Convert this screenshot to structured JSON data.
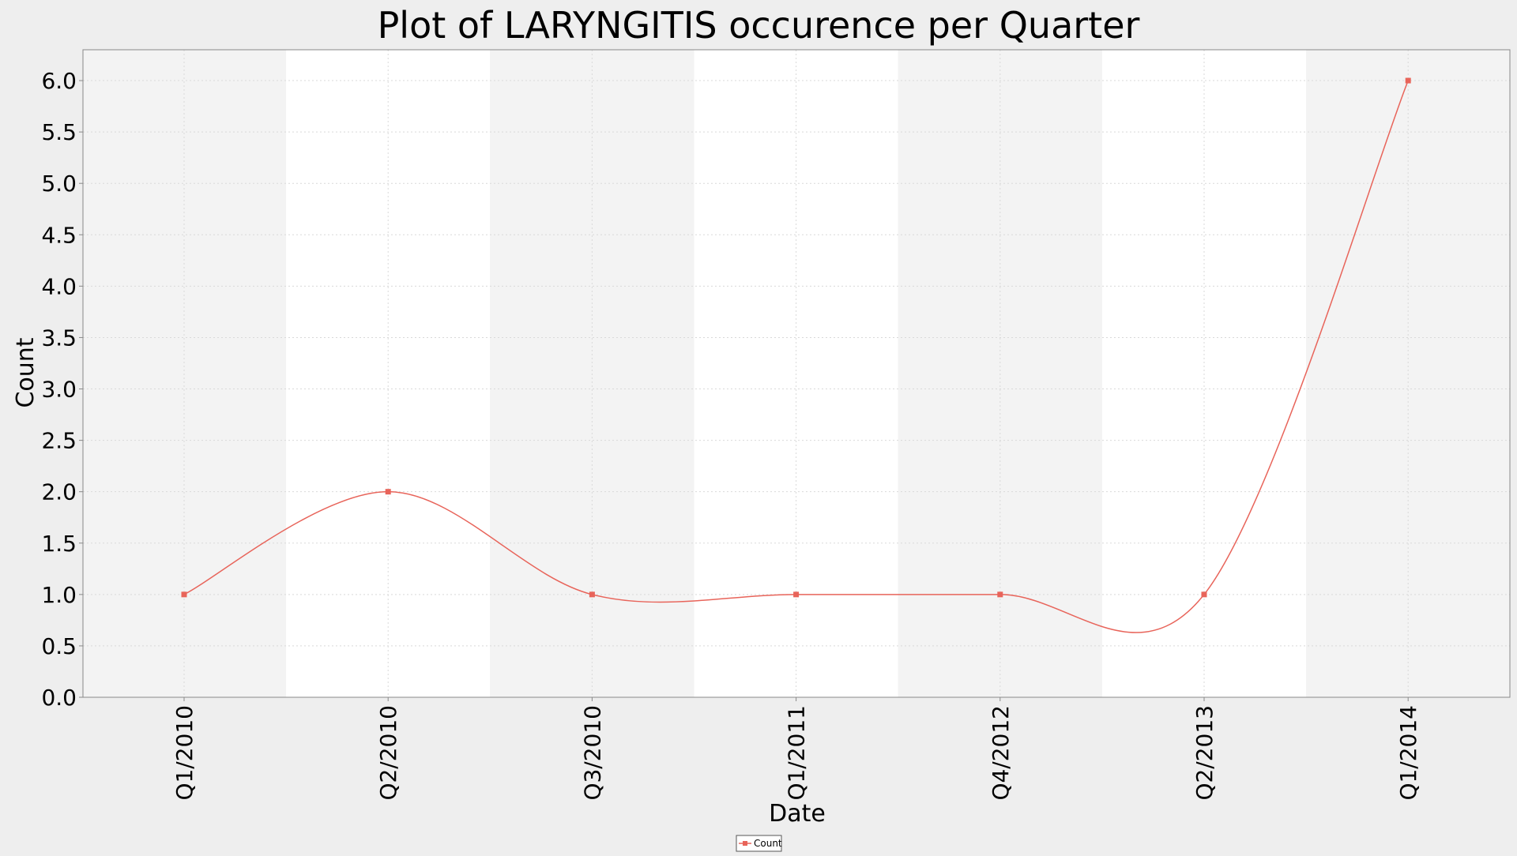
{
  "chart_data": {
    "type": "line",
    "title": "Plot of LARYNGITIS occurence per Quarter",
    "xlabel": "Date",
    "ylabel": "Count",
    "categories": [
      "Q1/2010",
      "Q2/2010",
      "Q3/2010",
      "Q1/2011",
      "Q4/2012",
      "Q2/2013",
      "Q1/2014"
    ],
    "series": [
      {
        "name": "Count",
        "values": [
          1,
          2,
          1,
          1,
          1,
          1,
          6
        ],
        "color": "#e8645a"
      }
    ],
    "ylim": [
      0,
      6.3
    ],
    "yticks": [
      "0.0",
      "0.5",
      "1.0",
      "1.5",
      "2.0",
      "2.5",
      "3.0",
      "3.5",
      "4.0",
      "4.5",
      "5.0",
      "5.5",
      "6.0"
    ],
    "grid": true,
    "smoothed": true,
    "legend_position": "bottom-center",
    "colors": {
      "background": "#eeeeee",
      "band_dark": "#f3f3f3",
      "band_light": "#ffffff",
      "gridline": "#d9d9d9",
      "axis": "#888888",
      "text": "#000000"
    }
  }
}
